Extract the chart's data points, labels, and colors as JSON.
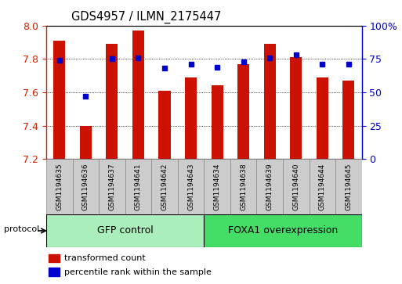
{
  "title": "GDS4957 / ILMN_2175447",
  "samples": [
    "GSM1194635",
    "GSM1194636",
    "GSM1194637",
    "GSM1194641",
    "GSM1194642",
    "GSM1194643",
    "GSM1194634",
    "GSM1194638",
    "GSM1194639",
    "GSM1194640",
    "GSM1194644",
    "GSM1194645"
  ],
  "transformed_counts": [
    7.91,
    7.4,
    7.89,
    7.97,
    7.61,
    7.69,
    7.64,
    7.77,
    7.89,
    7.81,
    7.69,
    7.67
  ],
  "percentile_ranks": [
    74,
    47,
    75,
    76,
    68,
    71,
    69,
    73,
    76,
    78,
    71,
    71
  ],
  "ylim_left": [
    7.2,
    8.0
  ],
  "ylim_right": [
    0,
    100
  ],
  "yticks_left": [
    7.2,
    7.4,
    7.6,
    7.8,
    8.0
  ],
  "yticks_right": [
    0,
    25,
    50,
    75,
    100
  ],
  "bar_color": "#CC1100",
  "dot_color": "#0000CC",
  "group1_label": "GFP control",
  "group2_label": "FOXA1 overexpression",
  "group1_indices": [
    0,
    1,
    2,
    3,
    4,
    5
  ],
  "group2_indices": [
    6,
    7,
    8,
    9,
    10,
    11
  ],
  "group1_color": "#AAEEBB",
  "group2_color": "#44DD66",
  "legend_bar_label": "transformed count",
  "legend_dot_label": "percentile rank within the sample",
  "protocol_label": "protocol",
  "tick_label_color_left": "#CC2200",
  "tick_label_color_right": "#0000CC",
  "grid_color": "black",
  "ybase": 7.2,
  "bar_width": 0.45,
  "tick_bg_color": "#CCCCCC",
  "tick_border_color": "#888888"
}
